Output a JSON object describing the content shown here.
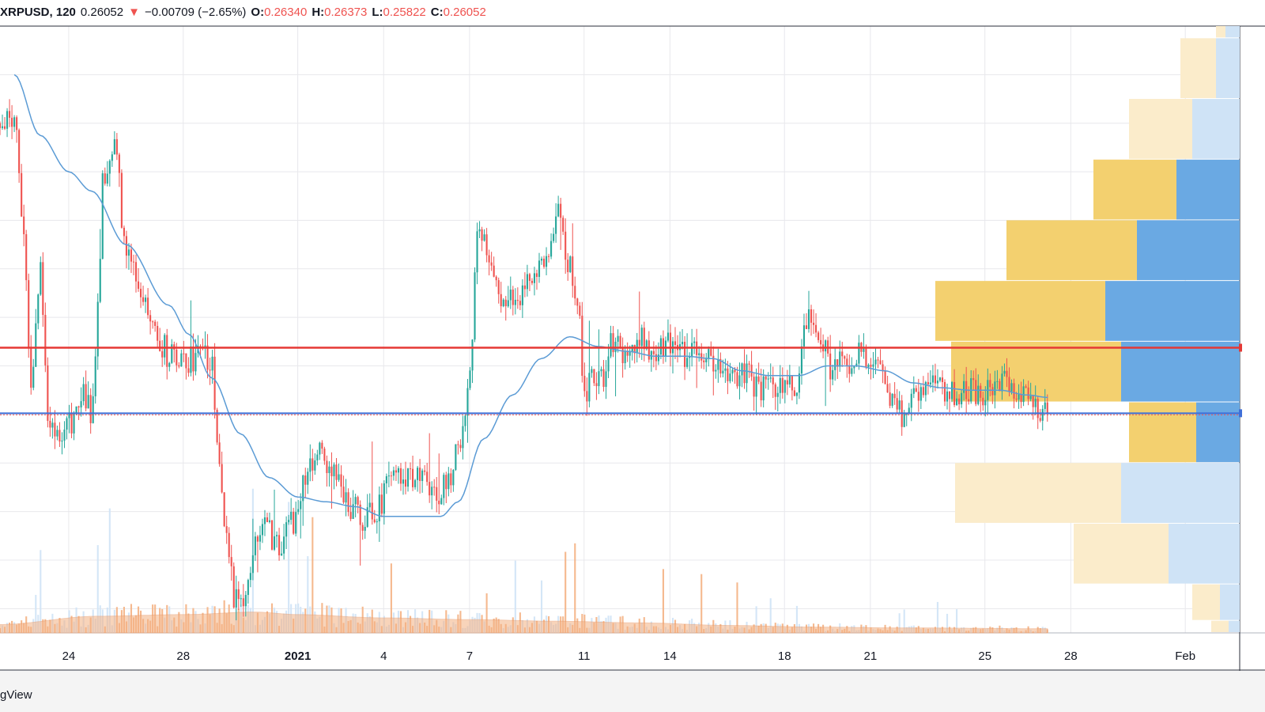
{
  "header": {
    "symbol_interval": "XRPUSD, 120",
    "last": "0.26052",
    "arrow": "▼",
    "change": "−0.00709 (−2.65%)",
    "o_label": "O:",
    "o_value": "0.26340",
    "h_label": "H:",
    "h_value": "0.26373",
    "l_label": "L:",
    "l_value": "0.25822",
    "c_label": "C:",
    "c_value": "0.26052"
  },
  "footer": {
    "brand": "gView"
  },
  "colors": {
    "up": "#26a69a",
    "down": "#ef5350",
    "ma": "#5b9bd5",
    "resistance": "#e53935",
    "last_price_line": "#3f6fd8",
    "vp_up": "#f3d06f",
    "vp_down": "#6aa9e3",
    "vp_up_light": "#fbeccb",
    "vp_down_light": "#cfe3f6",
    "volume": "#f4b183",
    "grid": "#e8e8ec"
  },
  "chart_data": {
    "type": "candlestick",
    "x_ticks": [
      {
        "label": "24",
        "bold": false,
        "day_offset": 1
      },
      {
        "label": "28",
        "bold": false,
        "day_offset": 5
      },
      {
        "label": "2021",
        "bold": true,
        "day_offset": 9
      },
      {
        "label": "4",
        "bold": false,
        "day_offset": 12
      },
      {
        "label": "7",
        "bold": false,
        "day_offset": 15
      },
      {
        "label": "11",
        "bold": false,
        "day_offset": 19
      },
      {
        "label": "14",
        "bold": false,
        "day_offset": 22
      },
      {
        "label": "18",
        "bold": false,
        "day_offset": 26
      },
      {
        "label": "21",
        "bold": false,
        "day_offset": 29
      },
      {
        "label": "25",
        "bold": false,
        "day_offset": 33
      },
      {
        "label": "28",
        "bold": false,
        "day_offset": 36
      },
      {
        "label": "Feb",
        "bold": false,
        "day_offset": 40
      }
    ],
    "x_range_days": [
      -1.4,
      41.9
    ],
    "data_end_day": 35.2,
    "price_anchors": [
      [
        -0.9,
        0.38
      ],
      [
        -0.6,
        0.34
      ],
      [
        -0.3,
        0.27
      ],
      [
        0.0,
        0.32
      ],
      [
        0.3,
        0.26
      ],
      [
        0.6,
        0.25
      ],
      [
        1.0,
        0.255
      ],
      [
        1.5,
        0.27
      ],
      [
        1.8,
        0.26
      ],
      [
        2.0,
        0.3
      ],
      [
        2.2,
        0.355
      ],
      [
        2.6,
        0.37
      ],
      [
        3.0,
        0.33
      ],
      [
        3.5,
        0.31
      ],
      [
        4.0,
        0.295
      ],
      [
        4.5,
        0.285
      ],
      [
        5.0,
        0.28
      ],
      [
        5.6,
        0.285
      ],
      [
        6.0,
        0.28
      ],
      [
        6.2,
        0.245
      ],
      [
        6.5,
        0.21
      ],
      [
        6.8,
        0.185
      ],
      [
        7.1,
        0.178
      ],
      [
        7.4,
        0.2
      ],
      [
        7.8,
        0.22
      ],
      [
        8.3,
        0.205
      ],
      [
        8.8,
        0.215
      ],
      [
        9.3,
        0.235
      ],
      [
        9.8,
        0.245
      ],
      [
        10.3,
        0.235
      ],
      [
        10.8,
        0.222
      ],
      [
        11.3,
        0.218
      ],
      [
        11.8,
        0.222
      ],
      [
        12.3,
        0.238
      ],
      [
        12.8,
        0.232
      ],
      [
        13.3,
        0.236
      ],
      [
        13.8,
        0.228
      ],
      [
        14.3,
        0.232
      ],
      [
        14.7,
        0.25
      ],
      [
        15.0,
        0.28
      ],
      [
        15.3,
        0.34
      ],
      [
        15.6,
        0.33
      ],
      [
        15.9,
        0.31
      ],
      [
        16.3,
        0.305
      ],
      [
        16.8,
        0.31
      ],
      [
        17.3,
        0.315
      ],
      [
        17.8,
        0.33
      ],
      [
        18.1,
        0.345
      ],
      [
        18.4,
        0.325
      ],
      [
        18.8,
        0.305
      ],
      [
        19.0,
        0.27
      ],
      [
        19.3,
        0.275
      ],
      [
        19.6,
        0.275
      ],
      [
        20.0,
        0.29
      ],
      [
        20.5,
        0.285
      ],
      [
        21.0,
        0.29
      ],
      [
        21.5,
        0.285
      ],
      [
        22.0,
        0.29
      ],
      [
        22.5,
        0.285
      ],
      [
        23.0,
        0.288
      ],
      [
        23.5,
        0.28
      ],
      [
        24.0,
        0.275
      ],
      [
        24.5,
        0.278
      ],
      [
        25.0,
        0.272
      ],
      [
        25.5,
        0.27
      ],
      [
        26.0,
        0.275
      ],
      [
        26.4,
        0.272
      ],
      [
        26.7,
        0.3
      ],
      [
        27.0,
        0.295
      ],
      [
        27.3,
        0.288
      ],
      [
        27.6,
        0.28
      ],
      [
        28.0,
        0.28
      ],
      [
        28.4,
        0.283
      ],
      [
        28.8,
        0.285
      ],
      [
        29.2,
        0.28
      ],
      [
        29.6,
        0.27
      ],
      [
        29.9,
        0.262
      ],
      [
        30.2,
        0.26
      ],
      [
        30.6,
        0.268
      ],
      [
        31.0,
        0.273
      ],
      [
        31.5,
        0.27
      ],
      [
        32.0,
        0.268
      ],
      [
        32.5,
        0.27
      ],
      [
        33.0,
        0.268
      ],
      [
        33.5,
        0.273
      ],
      [
        34.0,
        0.27
      ],
      [
        34.5,
        0.265
      ],
      [
        35.2,
        0.2605
      ]
    ],
    "ma_anchors": [
      [
        -0.9,
        0.4
      ],
      [
        0.0,
        0.375
      ],
      [
        1.0,
        0.36
      ],
      [
        1.8,
        0.352
      ],
      [
        3.0,
        0.33
      ],
      [
        4.5,
        0.305
      ],
      [
        5.2,
        0.293
      ],
      [
        6.0,
        0.275
      ],
      [
        7.0,
        0.252
      ],
      [
        8.0,
        0.234
      ],
      [
        9.0,
        0.226
      ],
      [
        10.0,
        0.224
      ],
      [
        11.0,
        0.222
      ],
      [
        12.0,
        0.218
      ],
      [
        13.0,
        0.218
      ],
      [
        14.0,
        0.218
      ],
      [
        14.6,
        0.224
      ],
      [
        15.5,
        0.25
      ],
      [
        16.5,
        0.268
      ],
      [
        17.5,
        0.283
      ],
      [
        18.5,
        0.292
      ],
      [
        19.5,
        0.288
      ],
      [
        20.5,
        0.286
      ],
      [
        21.5,
        0.284
      ],
      [
        22.5,
        0.284
      ],
      [
        23.5,
        0.283
      ],
      [
        24.5,
        0.278
      ],
      [
        25.5,
        0.276
      ],
      [
        26.5,
        0.276
      ],
      [
        27.5,
        0.28
      ],
      [
        28.5,
        0.28
      ],
      [
        29.5,
        0.278
      ],
      [
        30.5,
        0.273
      ],
      [
        31.5,
        0.271
      ],
      [
        32.5,
        0.27
      ],
      [
        33.5,
        0.27
      ],
      [
        34.5,
        0.268
      ],
      [
        35.2,
        0.267
      ]
    ],
    "volume_avg_anchors": [
      [
        -1.4,
        10
      ],
      [
        2.0,
        20
      ],
      [
        5.0,
        22
      ],
      [
        7.5,
        25
      ],
      [
        9.0,
        22
      ],
      [
        12.0,
        18
      ],
      [
        15.0,
        16
      ],
      [
        18.0,
        14
      ],
      [
        21.0,
        12
      ],
      [
        24.0,
        9
      ],
      [
        27.0,
        7
      ],
      [
        30.0,
        6
      ],
      [
        35.2,
        5
      ]
    ],
    "y_range": [
      0.17,
      0.42
    ],
    "volume_max": 200,
    "resistance_level": 0.2875,
    "last_price": 0.2605,
    "volume_profile": [
      {
        "low": 0.165,
        "high": 0.175,
        "up": 22,
        "down": 14,
        "in_range": false
      },
      {
        "low": 0.175,
        "high": 0.19,
        "up": 35,
        "down": 25,
        "in_range": false
      },
      {
        "low": 0.19,
        "high": 0.215,
        "up": 120,
        "down": 90,
        "in_range": false
      },
      {
        "low": 0.215,
        "high": 0.24,
        "up": 210,
        "down": 150,
        "in_range": false
      },
      {
        "low": 0.24,
        "high": 0.265,
        "up": 85,
        "down": 55,
        "in_range": true
      },
      {
        "low": 0.265,
        "high": 0.29,
        "up": 215,
        "down": 150,
        "in_range": true
      },
      {
        "low": 0.29,
        "high": 0.315,
        "up": 215,
        "down": 170,
        "in_range": true
      },
      {
        "low": 0.315,
        "high": 0.34,
        "up": 165,
        "down": 130,
        "in_range": true
      },
      {
        "low": 0.34,
        "high": 0.365,
        "up": 105,
        "down": 80,
        "in_range": true
      },
      {
        "low": 0.365,
        "high": 0.39,
        "up": 80,
        "down": 60,
        "in_range": false
      },
      {
        "low": 0.39,
        "high": 0.415,
        "up": 45,
        "down": 30,
        "in_range": false
      },
      {
        "low": 0.415,
        "high": 0.435,
        "up": 12,
        "down": 18,
        "in_range": false
      }
    ],
    "grid": true
  }
}
